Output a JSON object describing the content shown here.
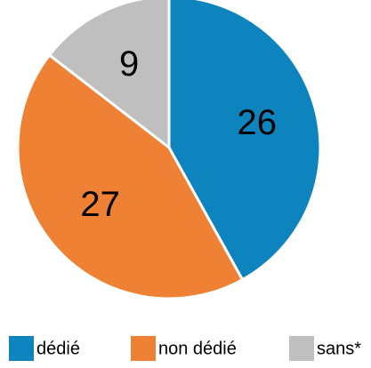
{
  "chart_data": {
    "type": "pie",
    "categories": [
      "dédié",
      "non dédié",
      "sans*"
    ],
    "values": [
      26,
      27,
      9
    ],
    "colors": [
      "#0e84bf",
      "#ee8133",
      "#bfbfbf"
    ],
    "legend": "bottom"
  }
}
